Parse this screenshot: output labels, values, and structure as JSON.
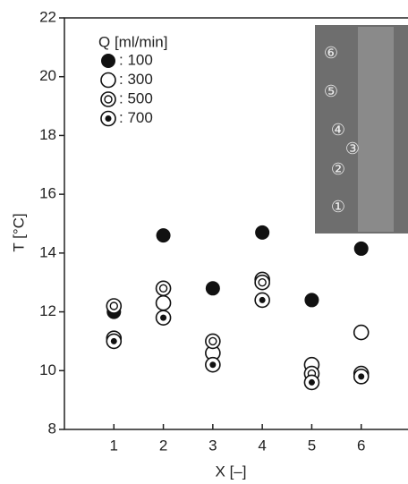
{
  "chart_data": {
    "type": "scatter",
    "x_label": "X [–]",
    "y_label": "T [°C]",
    "legend_title": "Q [ml/min]",
    "inset_labels": [
      "⑥",
      "⑤",
      "④",
      "③",
      "②",
      "①"
    ],
    "xlim": [
      0,
      7
    ],
    "xticks": [
      1,
      2,
      3,
      4,
      5,
      6
    ],
    "ylim": [
      8,
      22
    ],
    "yticks": [
      8,
      10,
      12,
      14,
      16,
      18,
      20,
      22
    ],
    "x": [
      1,
      2,
      3,
      4,
      5,
      6
    ],
    "series": [
      {
        "name": ": 100",
        "marker": "filled",
        "color": "#111111",
        "values": [
          12.0,
          14.6,
          12.8,
          14.7,
          12.4,
          14.15
        ]
      },
      {
        "name": ": 300",
        "marker": "open",
        "color": "#111111",
        "values": [
          11.1,
          12.3,
          10.6,
          13.1,
          10.2,
          11.3
        ]
      },
      {
        "name": ": 500",
        "marker": "ring",
        "color": "#111111",
        "values": [
          12.2,
          12.8,
          11.0,
          13.0,
          9.9,
          9.9
        ]
      },
      {
        "name": ": 700",
        "marker": "dot",
        "color": "#111111",
        "values": [
          11.0,
          11.8,
          10.2,
          12.4,
          9.6,
          9.8
        ]
      }
    ]
  }
}
